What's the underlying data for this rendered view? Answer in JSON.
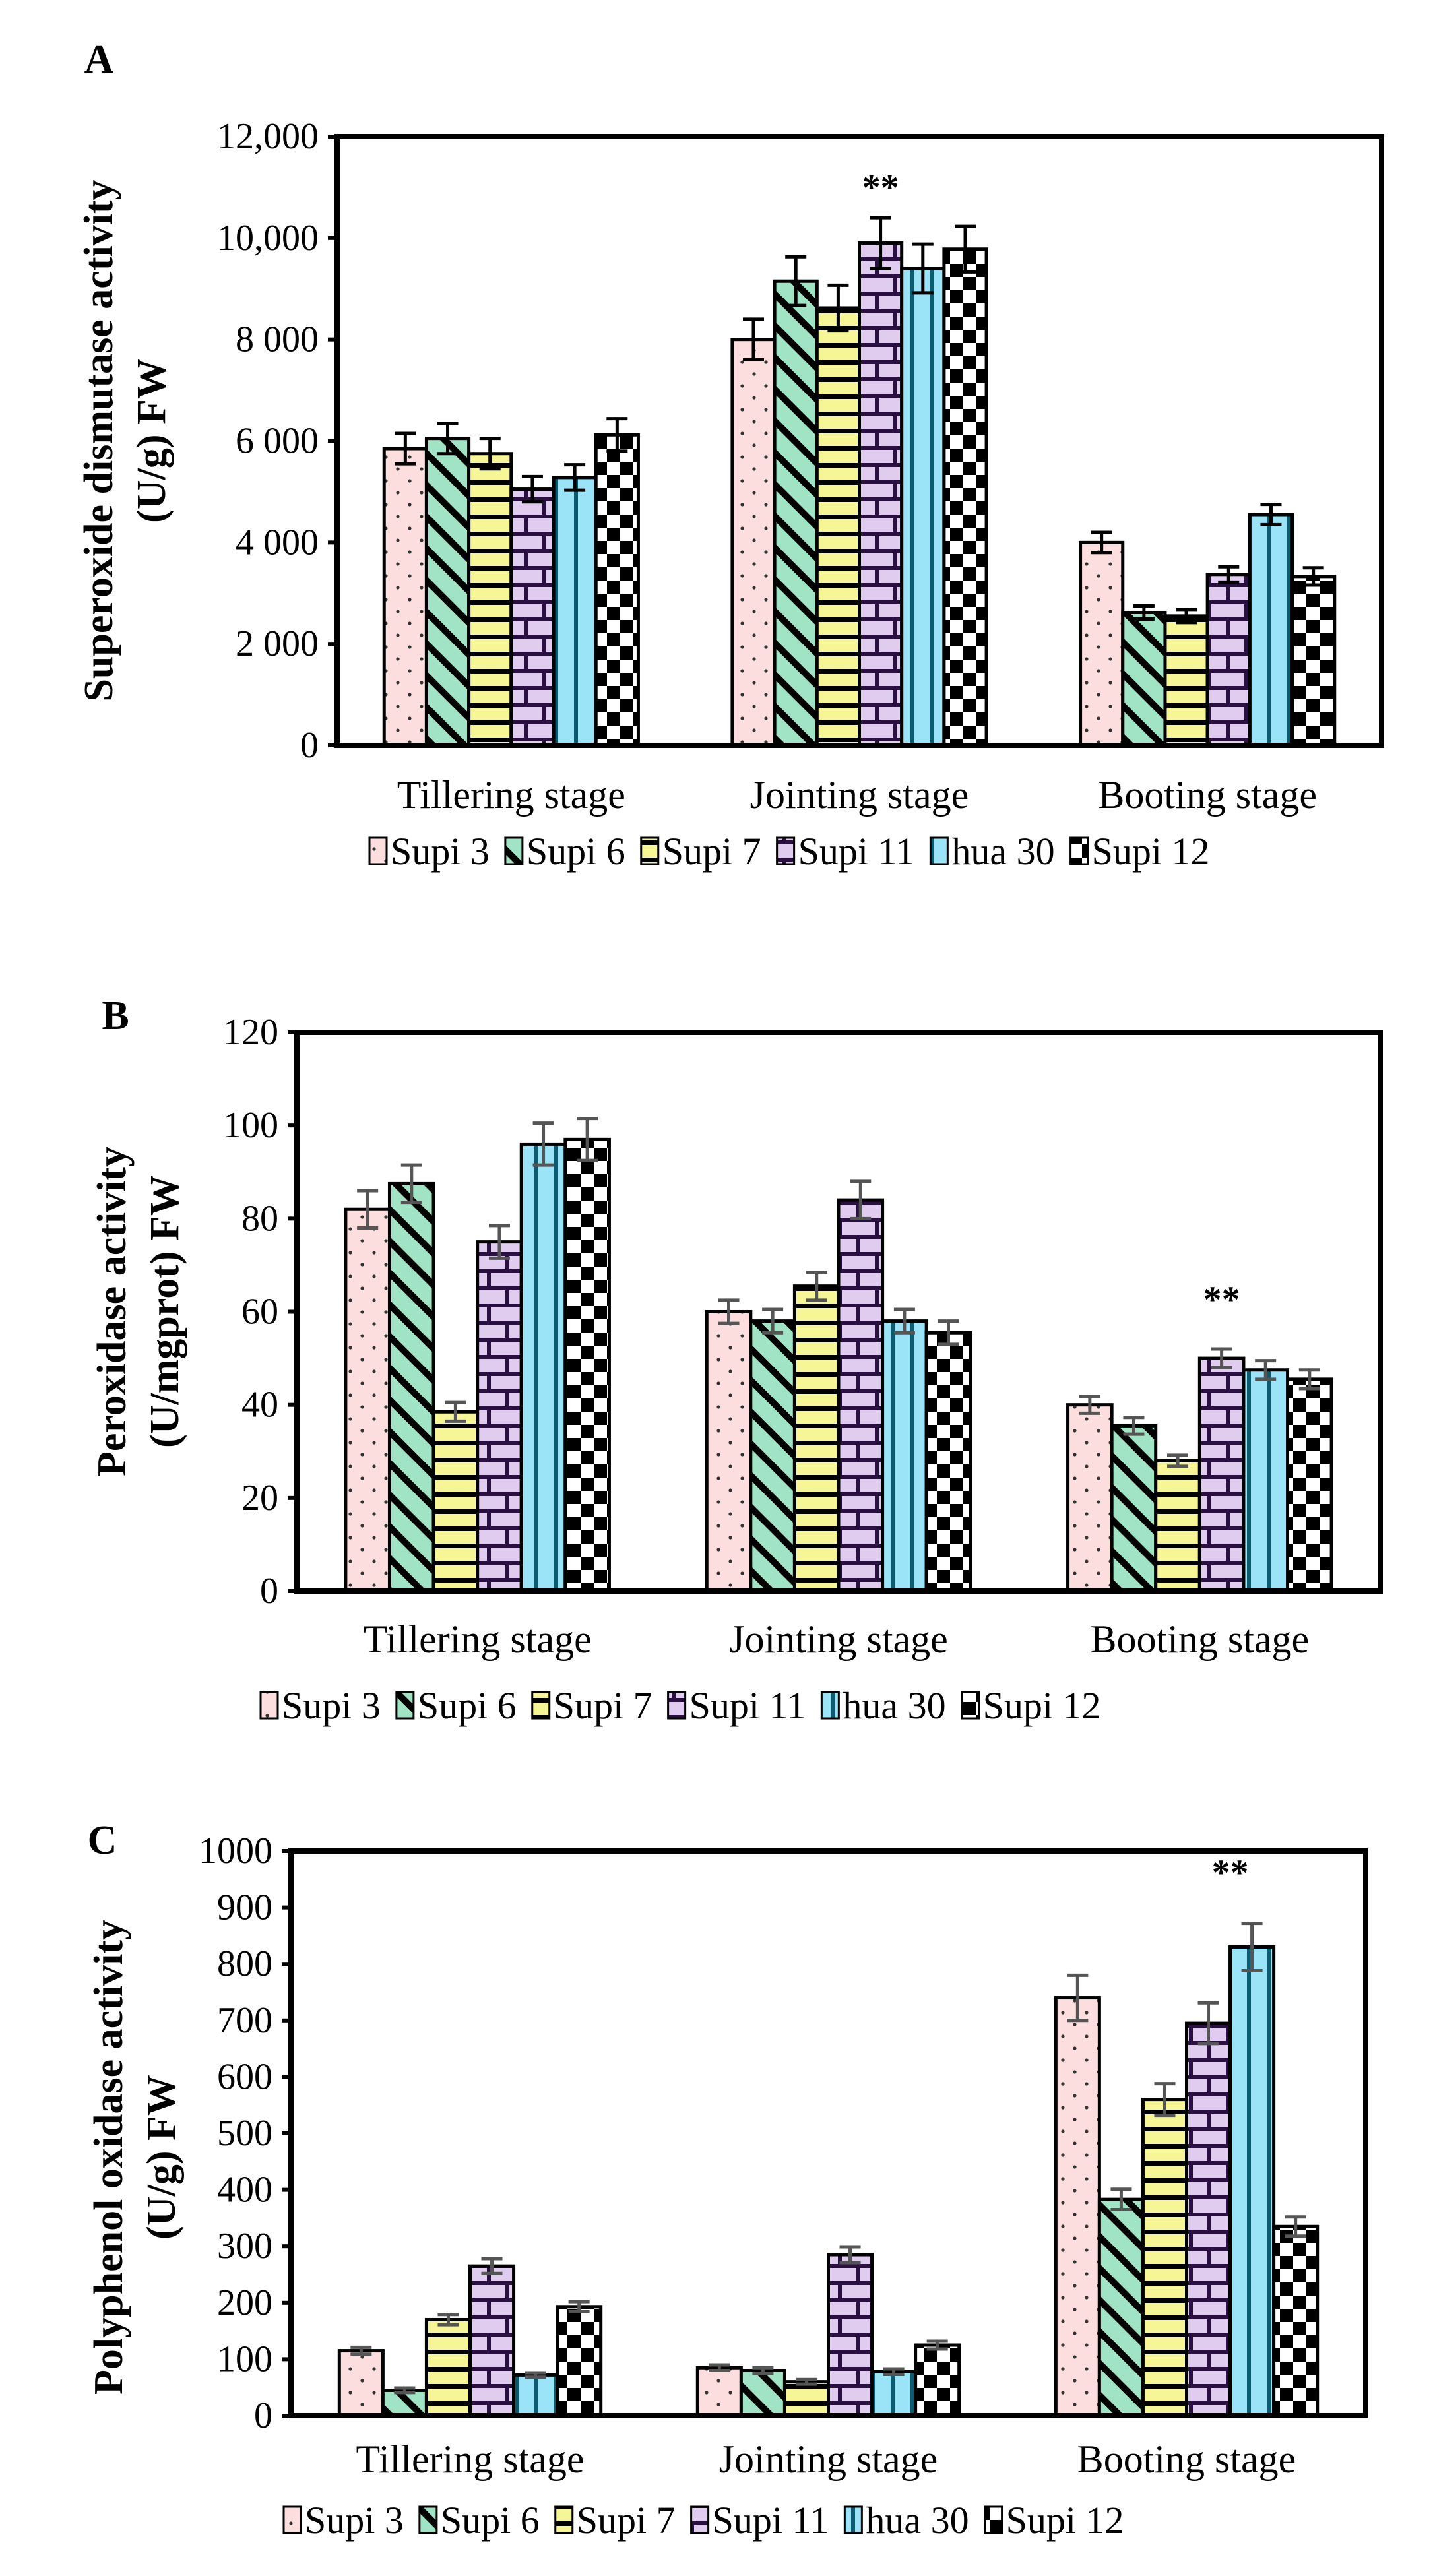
{
  "series_styles": [
    {
      "name": "Supi 3",
      "color": "#f47a7a",
      "pattern": "dots"
    },
    {
      "name": "Supi 6",
      "color": "#2ec27e",
      "pattern": "diagonal"
    },
    {
      "name": "Supi 7",
      "color": "#f2f26a",
      "pattern": "horizontal"
    },
    {
      "name": "Supi 11",
      "color": "#b27fd6",
      "pattern": "brick"
    },
    {
      "name": "hua 30",
      "color": "#20c4ef",
      "pattern": "vertical"
    },
    {
      "name": "Supi 12",
      "color": "#000000",
      "pattern": "checker"
    }
  ],
  "chart_data": [
    {
      "panel": "A",
      "type": "bar",
      "ylabel_lines": [
        "Superoxide dismutase activity",
        "(U/g) FW"
      ],
      "categories": [
        "Tillering stage",
        "Jointing stage",
        "Booting stage"
      ],
      "ylim": [
        0,
        12000
      ],
      "yticks": [
        0,
        2000,
        4000,
        6000,
        8000,
        10000,
        12000
      ],
      "ytick_labels": [
        "0",
        "2 000",
        "4 000",
        "6 000",
        "8 000",
        "10,000",
        "12,000"
      ],
      "legend": "bottom",
      "series": [
        {
          "name": "Supi 3",
          "values": [
            5850,
            8000,
            4000
          ],
          "errors": [
            300,
            400,
            200
          ]
        },
        {
          "name": "Supi 6",
          "values": [
            6050,
            9150,
            2620
          ],
          "errors": [
            300,
            480,
            130
          ]
        },
        {
          "name": "Supi 7",
          "values": [
            5750,
            8620,
            2550
          ],
          "errors": [
            300,
            450,
            130
          ]
        },
        {
          "name": "Supi 11",
          "values": [
            5050,
            9900,
            3370
          ],
          "errors": [
            250,
            500,
            150
          ]
        },
        {
          "name": "hua 30",
          "values": [
            5280,
            9400,
            4550
          ],
          "errors": [
            250,
            480,
            200
          ]
        },
        {
          "name": "Supi 12",
          "values": [
            6120,
            9780,
            3330
          ],
          "errors": [
            320,
            450,
            170
          ]
        }
      ],
      "annotations": [
        {
          "text": "**",
          "category": 1,
          "series": 3,
          "y": 10750
        }
      ]
    },
    {
      "panel": "B",
      "type": "bar",
      "ylabel_lines": [
        "Peroxidase activity",
        "(U/mgprot) FW"
      ],
      "categories": [
        "Tillering stage",
        "Jointing stage",
        "Booting stage"
      ],
      "ylim": [
        0,
        120
      ],
      "yticks": [
        0,
        20,
        40,
        60,
        80,
        100,
        120
      ],
      "ytick_labels": [
        "0",
        "20",
        "40",
        "60",
        "80",
        "100",
        "120"
      ],
      "legend": "bottom",
      "series": [
        {
          "name": "Supi 3",
          "values": [
            82,
            60,
            40
          ],
          "errors": [
            4,
            2.5,
            1.8
          ]
        },
        {
          "name": "Supi 6",
          "values": [
            87.5,
            58,
            35.5
          ],
          "errors": [
            4,
            2.5,
            1.8
          ]
        },
        {
          "name": "Supi 7",
          "values": [
            38.5,
            65.5,
            28
          ],
          "errors": [
            2,
            3,
            1.2
          ]
        },
        {
          "name": "Supi 11",
          "values": [
            75,
            84,
            50
          ],
          "errors": [
            3.5,
            4,
            2
          ]
        },
        {
          "name": "hua 30",
          "values": [
            96,
            58,
            47.5
          ],
          "errors": [
            4.5,
            2.5,
            2
          ]
        },
        {
          "name": "Supi 12",
          "values": [
            97,
            55.5,
            45.5
          ],
          "errors": [
            4.5,
            2.5,
            2
          ]
        }
      ],
      "annotations": [
        {
          "text": "**",
          "category": 2,
          "series": 3,
          "y": 60
        }
      ]
    },
    {
      "panel": "C",
      "type": "bar",
      "ylabel_lines": [
        "Polyphenol oxidase activity",
        "(U/g) FW"
      ],
      "categories": [
        "Tillering stage",
        "Jointing stage",
        "Booting stage"
      ],
      "ylim": [
        0,
        1000
      ],
      "yticks": [
        0,
        100,
        200,
        300,
        400,
        500,
        600,
        700,
        800,
        900,
        1000
      ],
      "ytick_labels": [
        "0",
        "100",
        "200",
        "300",
        "400",
        "500",
        "600",
        "700",
        "800",
        "900",
        "1000"
      ],
      "legend": "bottom",
      "series": [
        {
          "name": "Supi 3",
          "values": [
            115,
            85,
            740
          ],
          "errors": [
            6,
            5,
            40
          ]
        },
        {
          "name": "Supi 6",
          "values": [
            45,
            80,
            383
          ],
          "errors": [
            4,
            5,
            18
          ]
        },
        {
          "name": "Supi 7",
          "values": [
            170,
            60,
            560
          ],
          "errors": [
            9,
            4,
            28
          ]
        },
        {
          "name": "Supi 11",
          "values": [
            265,
            285,
            695
          ],
          "errors": [
            13,
            14,
            36
          ]
        },
        {
          "name": "hua 30",
          "values": [
            72,
            78,
            830
          ],
          "errors": [
            4,
            5,
            42
          ]
        },
        {
          "name": "Supi 12",
          "values": [
            193,
            125,
            335
          ],
          "errors": [
            9,
            7,
            17
          ]
        }
      ],
      "annotations": [
        {
          "text": "**",
          "category": 2,
          "series": 3.5,
          "y": 940
        }
      ]
    }
  ]
}
